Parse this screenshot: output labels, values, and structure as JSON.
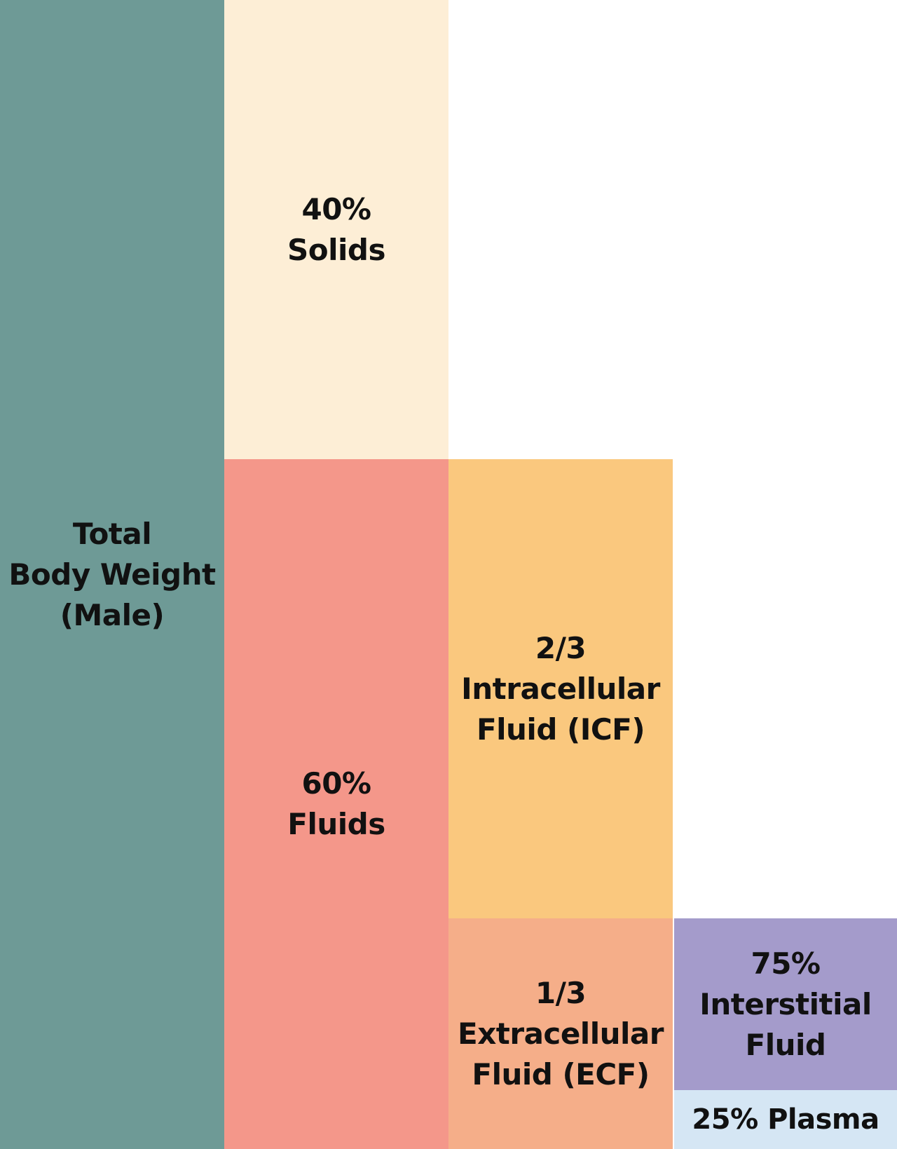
{
  "colors": {
    "total": "#6e9a96",
    "solids": "#fdeed6",
    "fluids": "#f4978a",
    "icf": "#fac87e",
    "ecf": "#f5ae89",
    "interstitial": "#a49bcb",
    "plasma": "#d5e6f4",
    "text": "#111111"
  },
  "blocks": {
    "total": {
      "lines": [
        "Total",
        "Body Weight",
        "(Male)"
      ]
    },
    "solids": {
      "lines": [
        "40%",
        "Solids"
      ]
    },
    "fluids": {
      "lines": [
        "60%",
        "Fluids"
      ]
    },
    "icf": {
      "lines": [
        "2/3",
        "Intracellular",
        "Fluid (ICF)"
      ]
    },
    "ecf": {
      "lines": [
        "1/3",
        "Extracellular",
        "Fluid (ECF)"
      ]
    },
    "interstitial": {
      "lines": [
        "75%",
        "Interstitial",
        "Fluid"
      ]
    },
    "plasma": {
      "lines": [
        "25% Plasma"
      ]
    }
  }
}
